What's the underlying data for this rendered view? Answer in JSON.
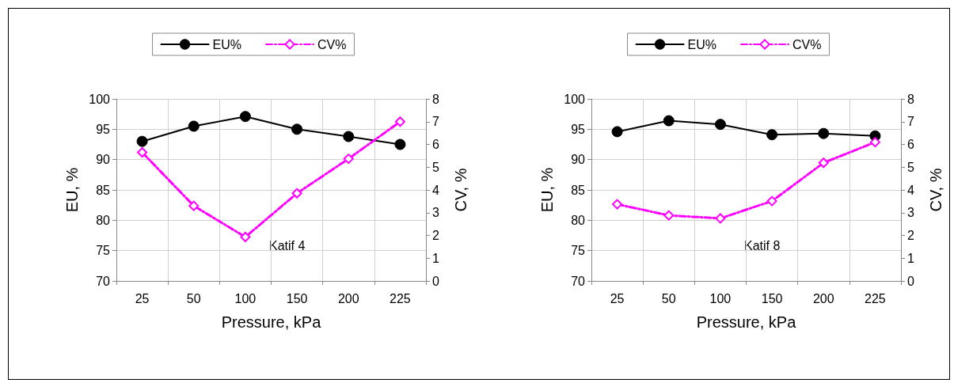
{
  "chart_data": [
    {
      "type": "line",
      "categories": [
        "25",
        "50",
        "100",
        "150",
        "200",
        "225"
      ],
      "xlabel": "Pressure, kPa",
      "ylabel": "EU, %",
      "y2label": "CV, %",
      "series": [
        {
          "name": "EU%",
          "color": "#000000",
          "values": [
            93.0,
            95.5,
            97.1,
            95.0,
            93.8,
            92.5
          ],
          "marker": "circle",
          "line_style": "solid"
        },
        {
          "name": "CV%",
          "color": "#ff00ff",
          "values": [
            5.65,
            3.3,
            1.93,
            3.85,
            5.37,
            7.0
          ],
          "axis": "y2",
          "marker": "diamond",
          "line_style": "dashed"
        }
      ],
      "ylim": [
        70,
        100
      ],
      "yticks": [
        70,
        75,
        80,
        85,
        90,
        95,
        100
      ],
      "y2lim": [
        0,
        8
      ],
      "y2ticks": [
        0,
        1,
        2,
        3,
        4,
        5,
        6,
        7,
        8
      ],
      "annotations": [
        "Katif 4"
      ],
      "grid": true,
      "legend": "top"
    },
    {
      "type": "line",
      "categories": [
        "25",
        "50",
        "100",
        "150",
        "200",
        "225"
      ],
      "xlabel": "Pressure, kPa",
      "ylabel": "EU, %",
      "y2label": "CV, %",
      "series": [
        {
          "name": "EU%",
          "color": "#000000",
          "values": [
            94.6,
            96.4,
            95.8,
            94.1,
            94.3,
            93.9
          ],
          "marker": "circle",
          "line_style": "solid"
        },
        {
          "name": "CV%",
          "color": "#ff00ff",
          "values": [
            3.37,
            2.88,
            2.75,
            3.51,
            5.19,
            6.1
          ],
          "axis": "y2",
          "marker": "diamond",
          "line_style": "dashed"
        }
      ],
      "ylim": [
        70,
        100
      ],
      "yticks": [
        70,
        75,
        80,
        85,
        90,
        95,
        100
      ],
      "y2lim": [
        0,
        8
      ],
      "y2ticks": [
        0,
        1,
        2,
        3,
        4,
        5,
        6,
        7,
        8
      ],
      "annotations": [
        "Katif 8"
      ],
      "grid": true,
      "legend": "top"
    }
  ]
}
